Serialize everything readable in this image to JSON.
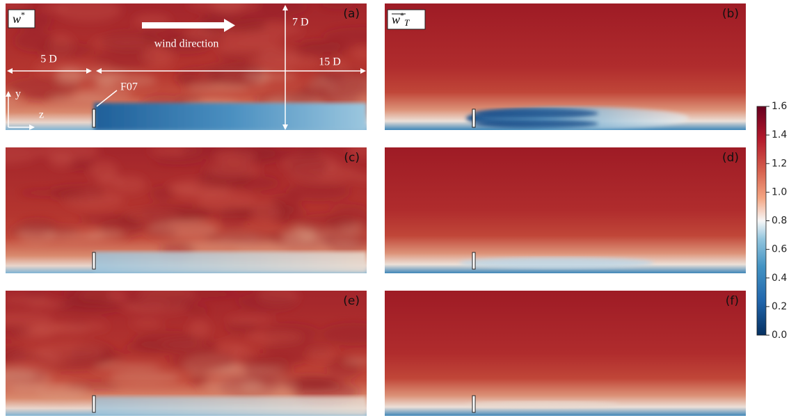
{
  "panels": [
    {
      "label": "(a)",
      "legend": {
        "symbol": "w",
        "superscript": "*"
      }
    },
    {
      "label": "(b)",
      "legend": {
        "symbol": "w",
        "superscript": "*",
        "subscript": "T"
      }
    },
    {
      "label": "(c)"
    },
    {
      "label": "(d)"
    },
    {
      "label": "(e)"
    },
    {
      "label": "(f)"
    }
  ],
  "annotations": {
    "wind": "wind direction",
    "upstream": "5 D",
    "downstream": "15 D",
    "height": "7 D",
    "turbine": "F07",
    "y_axis": "y",
    "z_axis": "z"
  },
  "colorbar": {
    "lim": [
      0,
      1.6
    ],
    "ticks": [
      {
        "value": 0,
        "label": "0.0"
      },
      0.2,
      0.4,
      0.6,
      0.8,
      {
        "value": 1,
        "label": "1.0"
      },
      1.2,
      1.4,
      1.6
    ]
  }
}
